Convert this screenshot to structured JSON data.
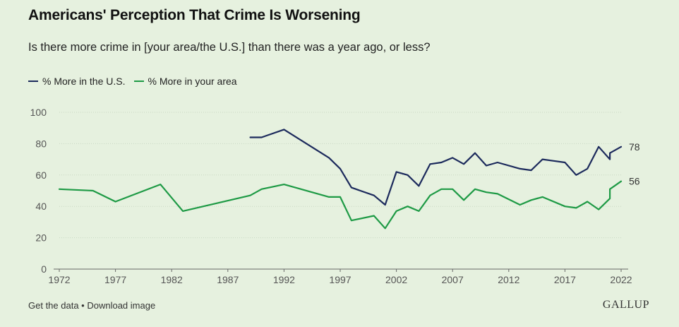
{
  "header": {
    "title": "Americans' Perception That Crime Is Worsening",
    "subtitle": "Is there more crime in [your area/the U.S.] than there was a year ago, or less?"
  },
  "footer": {
    "get_data": "Get the data",
    "separator": " • ",
    "download": "Download image",
    "brand": "GALLUP"
  },
  "chart_data": {
    "type": "line",
    "xlim": [
      1972,
      2022
    ],
    "ylim": [
      0,
      100
    ],
    "yticks": [
      0,
      20,
      40,
      60,
      80,
      100
    ],
    "xticks": [
      1972,
      1977,
      1982,
      1987,
      1992,
      1997,
      2002,
      2007,
      2012,
      2017,
      2022
    ],
    "grid": true,
    "legend_position": "top-left",
    "series": [
      {
        "name": "% More in the U.S.",
        "color": "#1c2a5c",
        "end_label": "78",
        "points": [
          [
            1989,
            84
          ],
          [
            1990,
            84
          ],
          [
            1992,
            89
          ],
          [
            1996,
            71
          ],
          [
            1997,
            64
          ],
          [
            1998,
            52
          ],
          [
            2000,
            47
          ],
          [
            2001,
            41
          ],
          [
            2002,
            62
          ],
          [
            2003,
            60
          ],
          [
            2004,
            53
          ],
          [
            2005,
            67
          ],
          [
            2006,
            68
          ],
          [
            2007,
            71
          ],
          [
            2008,
            67
          ],
          [
            2009,
            74
          ],
          [
            2010,
            66
          ],
          [
            2011,
            68
          ],
          [
            2013,
            64
          ],
          [
            2014,
            63
          ],
          [
            2015,
            70
          ],
          [
            2016,
            69
          ],
          [
            2017,
            68
          ],
          [
            2018,
            60
          ],
          [
            2019,
            64
          ],
          [
            2020,
            78
          ],
          [
            2021,
            70
          ],
          [
            2021,
            74
          ],
          [
            2022,
            78
          ]
        ]
      },
      {
        "name": "% More in your area",
        "color": "#1e9a45",
        "end_label": "56",
        "points": [
          [
            1972,
            51
          ],
          [
            1975,
            50
          ],
          [
            1977,
            43
          ],
          [
            1981,
            54
          ],
          [
            1983,
            37
          ],
          [
            1989,
            47
          ],
          [
            1990,
            51
          ],
          [
            1992,
            54
          ],
          [
            1996,
            46
          ],
          [
            1997,
            46
          ],
          [
            1998,
            31
          ],
          [
            2000,
            34
          ],
          [
            2001,
            26
          ],
          [
            2002,
            37
          ],
          [
            2003,
            40
          ],
          [
            2004,
            37
          ],
          [
            2005,
            47
          ],
          [
            2006,
            51
          ],
          [
            2007,
            51
          ],
          [
            2008,
            44
          ],
          [
            2009,
            51
          ],
          [
            2010,
            49
          ],
          [
            2011,
            48
          ],
          [
            2013,
            41
          ],
          [
            2014,
            44
          ],
          [
            2015,
            46
          ],
          [
            2017,
            40
          ],
          [
            2018,
            39
          ],
          [
            2019,
            43
          ],
          [
            2020,
            38
          ],
          [
            2021,
            45
          ],
          [
            2021,
            51
          ],
          [
            2022,
            56
          ]
        ]
      }
    ]
  }
}
